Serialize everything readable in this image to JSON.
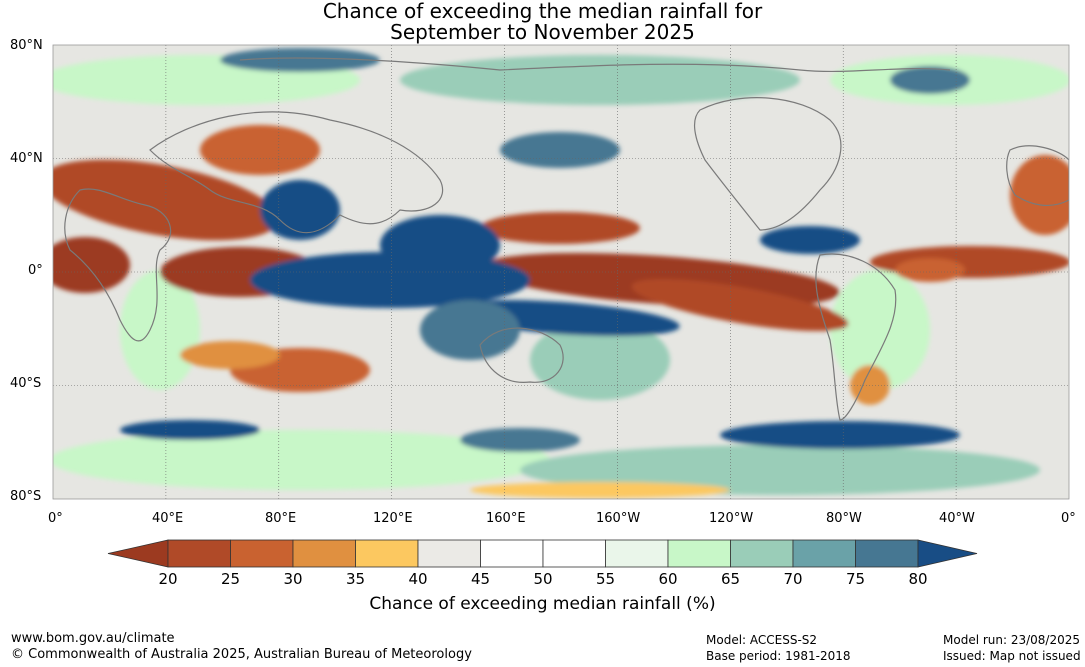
{
  "title": {
    "line1": "Chance of exceeding the median rainfall for",
    "line2": "September to November 2025"
  },
  "map": {
    "lat_labels": [
      "80°N",
      "40°N",
      "0°",
      "40°S",
      "80°S"
    ],
    "lon_labels": [
      "0°",
      "40°E",
      "80°E",
      "120°E",
      "160°E",
      "160°W",
      "120°W",
      "80°W",
      "40°W",
      "0°"
    ]
  },
  "colorbar": {
    "ticks": [
      "20",
      "25",
      "30",
      "35",
      "40",
      "45",
      "50",
      "55",
      "60",
      "65",
      "70",
      "75",
      "80"
    ],
    "colors": [
      "#9c3a20",
      "#b04a28",
      "#c96230",
      "#e09040",
      "#fcc860",
      "#ebeae6",
      "#ffffff",
      "#ffffff",
      "#eaf6ea",
      "#c8f7c8",
      "#9acdb8",
      "#6aa2a8",
      "#467792",
      "#184d85"
    ],
    "label": "Chance of exceeding median rainfall (%)"
  },
  "footer": {
    "url": "www.bom.gov.au/climate",
    "copyright": "© Commonwealth of Australia 2025, Australian Bureau of Meteorology",
    "model": "Model: ACCESS-S2",
    "base_period": "Base period: 1981-2018",
    "model_run": "Model run: 23/08/2025",
    "issued": "Issued: Map not issued"
  }
}
